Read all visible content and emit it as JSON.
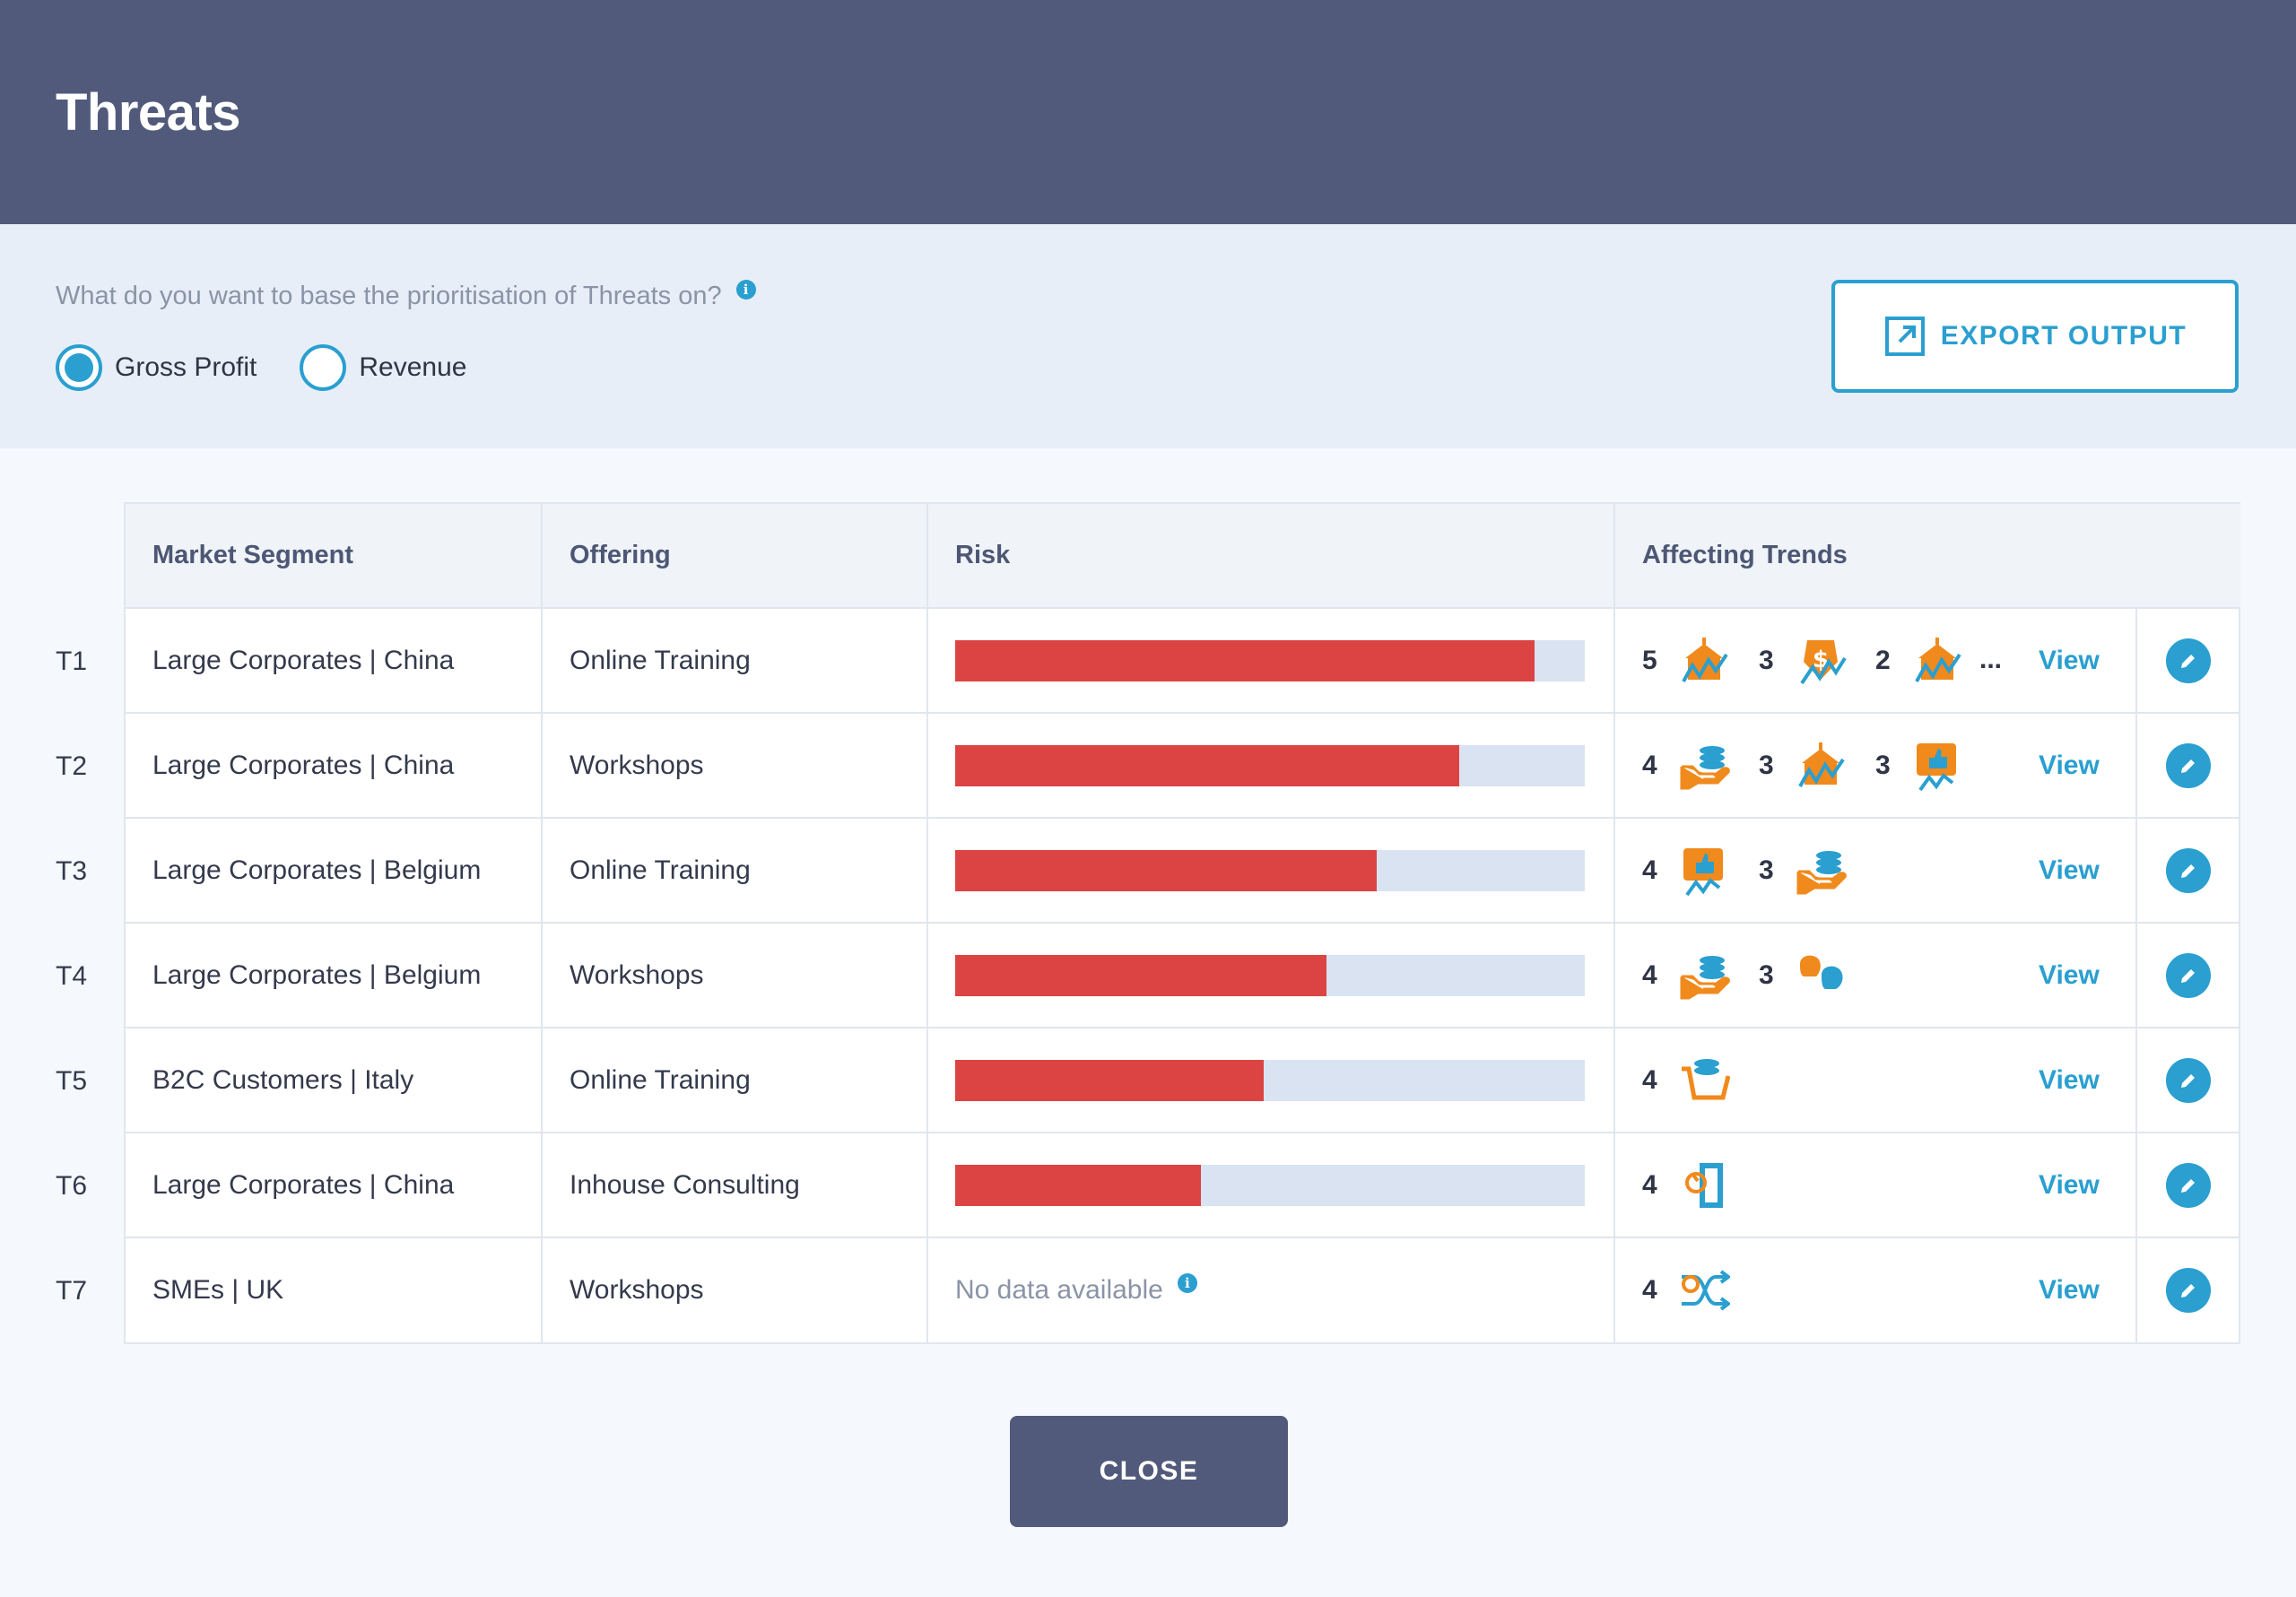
{
  "header": {
    "title": "Threats"
  },
  "prioritisation": {
    "question": "What do you want to base the prioritisation of Threats on?",
    "info_icon": "i",
    "options": [
      {
        "label": "Gross Profit",
        "selected": true
      },
      {
        "label": "Revenue",
        "selected": false
      }
    ],
    "export_label": "EXPORT OUTPUT"
  },
  "table": {
    "columns": [
      "Market Segment",
      "Offering",
      "Risk",
      "Affecting Trends"
    ],
    "view_label": "View",
    "more_label": "...",
    "no_data_label": "No data available",
    "rows": [
      {
        "id": "T1",
        "segment": "Large Corporates | China",
        "offering": "Online Training",
        "risk": 0.92,
        "trends": [
          {
            "count": "5",
            "icon": "government-chart-icon"
          },
          {
            "count": "3",
            "icon": "money-chart-icon"
          },
          {
            "count": "2",
            "icon": "government-chart-icon"
          }
        ],
        "more": true
      },
      {
        "id": "T2",
        "segment": "Large Corporates | China",
        "offering": "Workshops",
        "risk": 0.8,
        "trends": [
          {
            "count": "4",
            "icon": "hand-coins-icon"
          },
          {
            "count": "3",
            "icon": "government-chart-icon"
          },
          {
            "count": "3",
            "icon": "thumbs-up-chart-icon"
          }
        ],
        "more": false
      },
      {
        "id": "T3",
        "segment": "Large Corporates | Belgium",
        "offering": "Online Training",
        "risk": 0.67,
        "trends": [
          {
            "count": "4",
            "icon": "thumbs-up-chart-icon"
          },
          {
            "count": "3",
            "icon": "hand-coins-icon"
          }
        ],
        "more": false
      },
      {
        "id": "T4",
        "segment": "Large Corporates | Belgium",
        "offering": "Workshops",
        "risk": 0.59,
        "trends": [
          {
            "count": "4",
            "icon": "hand-coins-icon"
          },
          {
            "count": "3",
            "icon": "boxing-gloves-icon"
          }
        ],
        "more": false
      },
      {
        "id": "T5",
        "segment": "B2C Customers | Italy",
        "offering": "Online Training",
        "risk": 0.49,
        "trends": [
          {
            "count": "4",
            "icon": "shopping-basket-icon"
          }
        ],
        "more": false
      },
      {
        "id": "T6",
        "segment": "Large Corporates | China",
        "offering": "Inhouse Consulting",
        "risk": 0.39,
        "trends": [
          {
            "count": "4",
            "icon": "door-hand-icon"
          }
        ],
        "more": false
      },
      {
        "id": "T7",
        "segment": "SMEs | UK",
        "offering": "Workshops",
        "risk": null,
        "trends": [
          {
            "count": "4",
            "icon": "shuffle-icon"
          }
        ],
        "more": false
      }
    ]
  },
  "footer": {
    "close_label": "CLOSE"
  },
  "colors": {
    "header": "#515a7b",
    "accent": "#2a9fd0",
    "risk_fill": "#dc4444",
    "risk_track": "#d9e3f2",
    "trend_orange": "#f08a1c",
    "trend_blue": "#2a9fd0"
  }
}
